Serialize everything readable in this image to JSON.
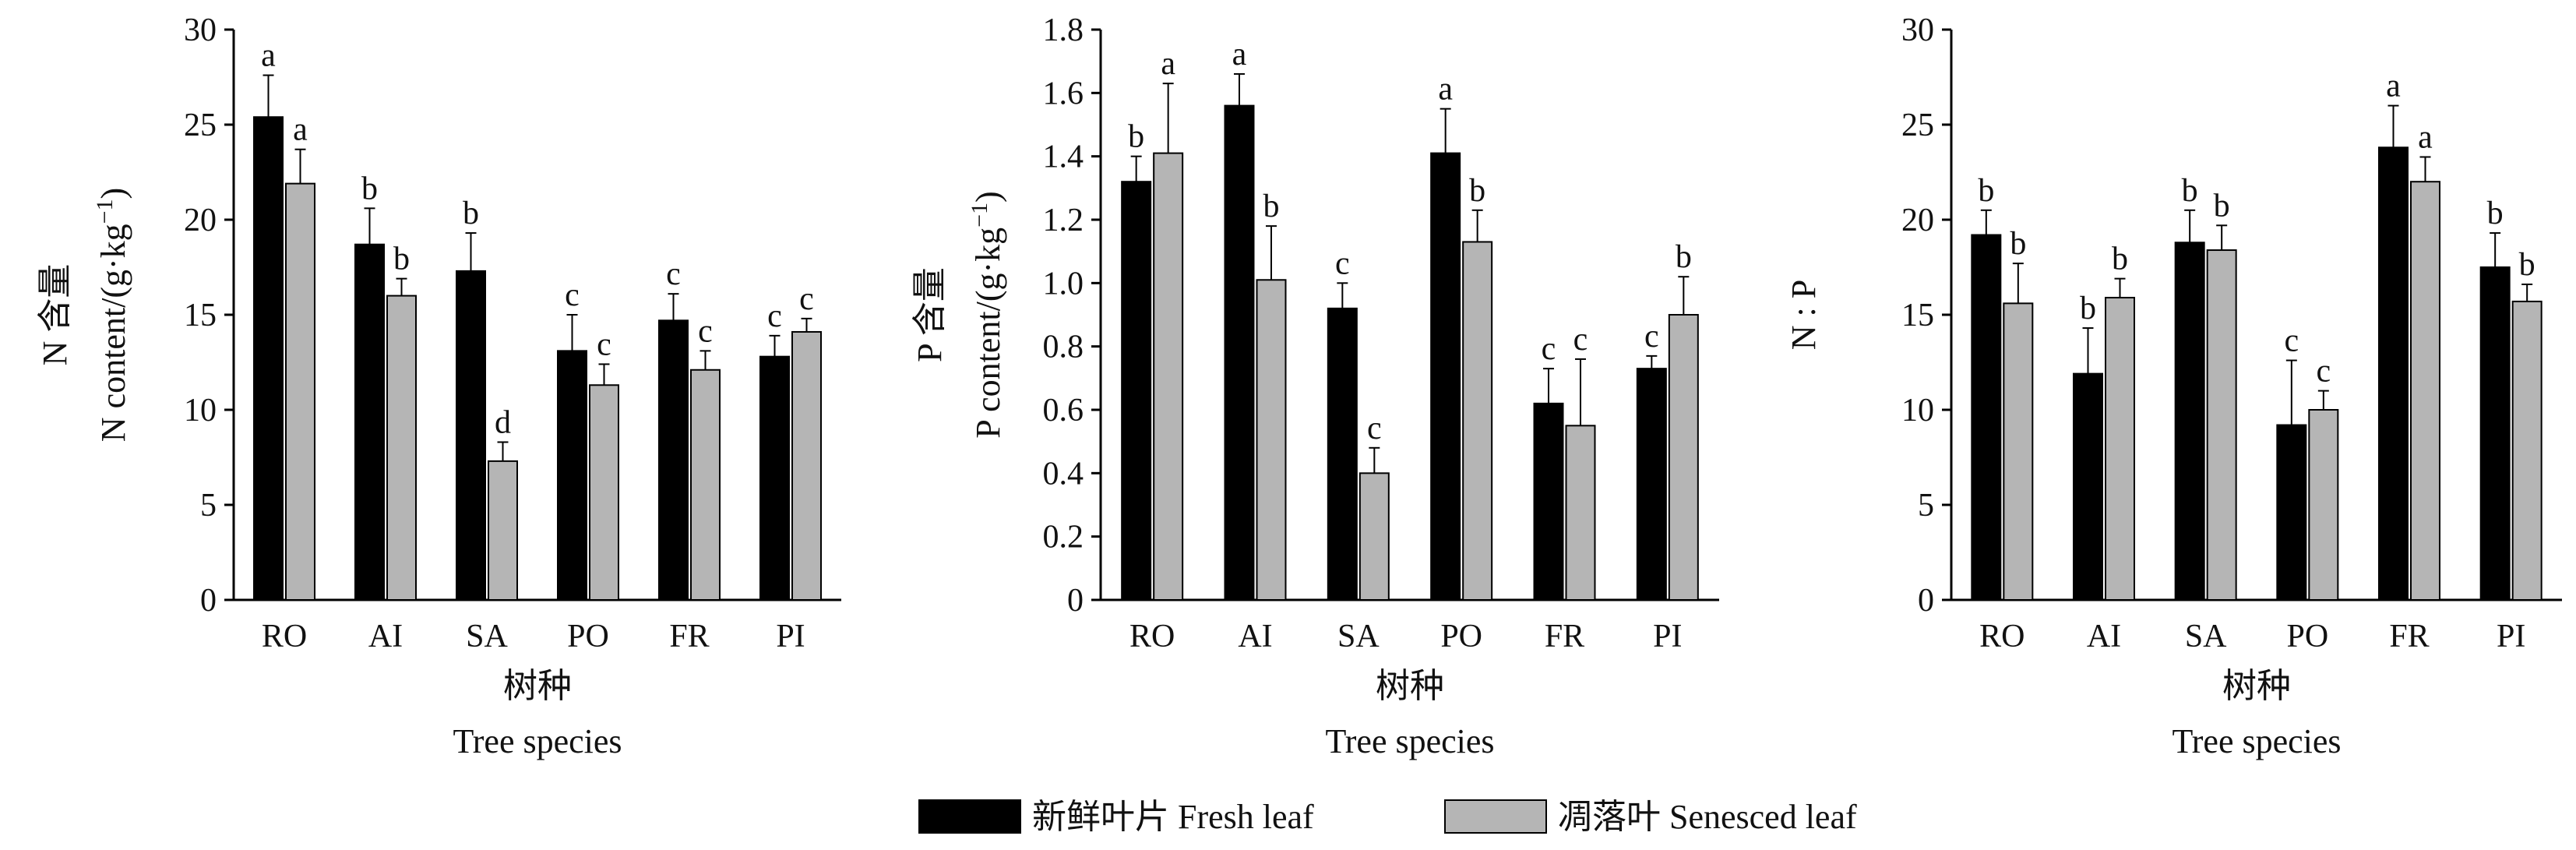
{
  "legend": [
    {
      "label": "新鲜叶片 Fresh leaf",
      "color": "#000000"
    },
    {
      "label": "凋落叶 Senesced leaf",
      "color": "#b5b5b5"
    }
  ],
  "chart_data": [
    {
      "type": "bar",
      "categories": [
        "RO",
        "AI",
        "SA",
        "PO",
        "FR",
        "PI"
      ],
      "ylabel_cn": "N 含量",
      "ylabel_en": "N content/(g·kg",
      "ylabel_sup": "−1",
      "ylabel_end": ")",
      "xlabel_cn": "树种",
      "xlabel_en": "Tree species",
      "ylim": [
        0,
        30
      ],
      "yticks": [
        "0",
        "5",
        "10",
        "15",
        "20",
        "25",
        "30"
      ],
      "series": [
        {
          "name": "新鲜叶片 Fresh leaf",
          "color": "#000000",
          "values": [
            25.4,
            18.7,
            17.3,
            13.1,
            14.7,
            12.8
          ],
          "errors": [
            2.2,
            1.9,
            2.0,
            1.9,
            1.4,
            1.1
          ],
          "letters": [
            "a",
            "b",
            "b",
            "c",
            "c",
            "c"
          ]
        },
        {
          "name": "凋落叶 Senesced leaf",
          "color": "#b5b5b5",
          "values": [
            21.9,
            16.0,
            7.3,
            11.3,
            12.1,
            14.1
          ],
          "errors": [
            1.8,
            0.9,
            1.0,
            1.1,
            1.0,
            0.7
          ],
          "letters": [
            "a",
            "b",
            "d",
            "c",
            "c",
            "c"
          ]
        }
      ]
    },
    {
      "type": "bar",
      "categories": [
        "RO",
        "AI",
        "SA",
        "PO",
        "FR",
        "PI"
      ],
      "ylabel_cn": "P 含量",
      "ylabel_en": "P content/(g·kg",
      "ylabel_sup": "−1",
      "ylabel_end": ")",
      "xlabel_cn": "树种",
      "xlabel_en": "Tree species",
      "ylim": [
        0,
        1.8
      ],
      "yticks": [
        "0",
        "0.2",
        "0.4",
        "0.6",
        "0.8",
        "1.0",
        "1.2",
        "1.4",
        "1.6",
        "1.8"
      ],
      "series": [
        {
          "name": "新鲜叶片 Fresh leaf",
          "color": "#000000",
          "values": [
            1.32,
            1.56,
            0.92,
            1.41,
            0.62,
            0.73
          ],
          "errors": [
            0.08,
            0.1,
            0.08,
            0.14,
            0.11,
            0.04
          ],
          "letters": [
            "b",
            "a",
            "c",
            "a",
            "c",
            "c"
          ]
        },
        {
          "name": "凋落叶 Senesced leaf",
          "color": "#b5b5b5",
          "values": [
            1.41,
            1.01,
            0.4,
            1.13,
            0.55,
            0.9
          ],
          "errors": [
            0.22,
            0.17,
            0.08,
            0.1,
            0.21,
            0.12
          ],
          "letters": [
            "a",
            "b",
            "c",
            "b",
            "c",
            "b"
          ]
        }
      ]
    },
    {
      "type": "bar",
      "categories": [
        "RO",
        "AI",
        "SA",
        "PO",
        "FR",
        "PI"
      ],
      "ylabel_cn": "",
      "ylabel_en": "N : P",
      "ylabel_sup": "",
      "ylabel_end": "",
      "xlabel_cn": "树种",
      "xlabel_en": "Tree species",
      "ylim": [
        0,
        30
      ],
      "yticks": [
        "0",
        "5",
        "10",
        "15",
        "20",
        "25",
        "30"
      ],
      "series": [
        {
          "name": "新鲜叶片 Fresh leaf",
          "color": "#000000",
          "values": [
            19.2,
            11.9,
            18.8,
            9.2,
            23.8,
            17.5
          ],
          "errors": [
            1.3,
            2.4,
            1.7,
            3.4,
            2.2,
            1.8
          ],
          "letters": [
            "b",
            "b",
            "b",
            "c",
            "a",
            "b"
          ]
        },
        {
          "name": "凋落叶 Senesced leaf",
          "color": "#b5b5b5",
          "values": [
            15.6,
            15.9,
            18.4,
            10.0,
            22.0,
            15.7
          ],
          "errors": [
            2.1,
            1.0,
            1.3,
            1.0,
            1.3,
            0.9
          ],
          "letters": [
            "b",
            "b",
            "b",
            "c",
            "a",
            "b"
          ]
        }
      ]
    }
  ]
}
